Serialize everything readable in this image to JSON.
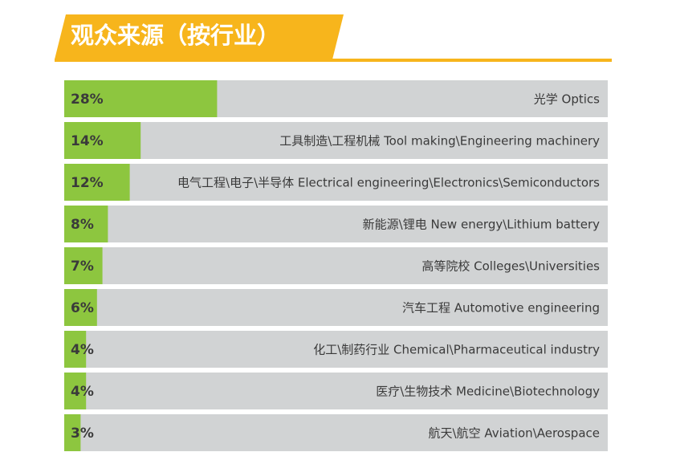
{
  "chart_data": {
    "type": "bar",
    "title": "观众来源（按行业）",
    "categories": [
      "光学 Optics",
      "工具制造\\工程机械 Tool making\\Engineering machinery",
      "电气工程\\电子\\半导体 Electrical engineering\\Electronics\\Semiconductors",
      "新能源\\锂电 New energy\\Lithium battery",
      "高等院校 Colleges\\Universities",
      "汽车工程 Automotive engineering",
      "化工\\制药行业 Chemical\\Pharmaceutical industry",
      "医疗\\生物技术 Medicine\\Biotechnology",
      "航天\\航空 Aviation\\Aerospace"
    ],
    "values": [
      28,
      14,
      12,
      8,
      7,
      6,
      4,
      4,
      3
    ],
    "value_labels": [
      "28%",
      "14%",
      "12%",
      "8%",
      "7%",
      "6%",
      "4%",
      "4%",
      "3%"
    ],
    "color": "#8dc63f"
  }
}
